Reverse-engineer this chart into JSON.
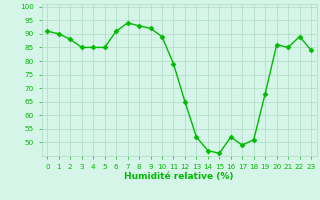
{
  "x": [
    0,
    1,
    2,
    3,
    4,
    5,
    6,
    7,
    8,
    9,
    10,
    11,
    12,
    13,
    14,
    15,
    16,
    17,
    18,
    19,
    20,
    21,
    22,
    23
  ],
  "y": [
    91,
    90,
    88,
    85,
    85,
    85,
    91,
    94,
    93,
    92,
    89,
    79,
    65,
    52,
    47,
    46,
    52,
    49,
    51,
    68,
    86,
    85,
    89,
    84
  ],
  "line_color": "#00bb00",
  "marker": "D",
  "marker_size": 2.5,
  "bg_color": "#d5f5e8",
  "grid_color": "#b0d9c8",
  "xlabel": "Humidité relative (%)",
  "xlabel_color": "#00bb00",
  "ylim": [
    45,
    101
  ],
  "xlim": [
    -0.5,
    23.5
  ],
  "yticks": [
    50,
    55,
    60,
    65,
    70,
    75,
    80,
    85,
    90,
    95,
    100
  ],
  "xticks": [
    0,
    1,
    2,
    3,
    4,
    5,
    6,
    7,
    8,
    9,
    10,
    11,
    12,
    13,
    14,
    15,
    16,
    17,
    18,
    19,
    20,
    21,
    22,
    23
  ],
  "tick_color": "#00bb00",
  "tick_fontsize": 5.2,
  "xlabel_fontsize": 6.5,
  "linewidth": 1.0
}
